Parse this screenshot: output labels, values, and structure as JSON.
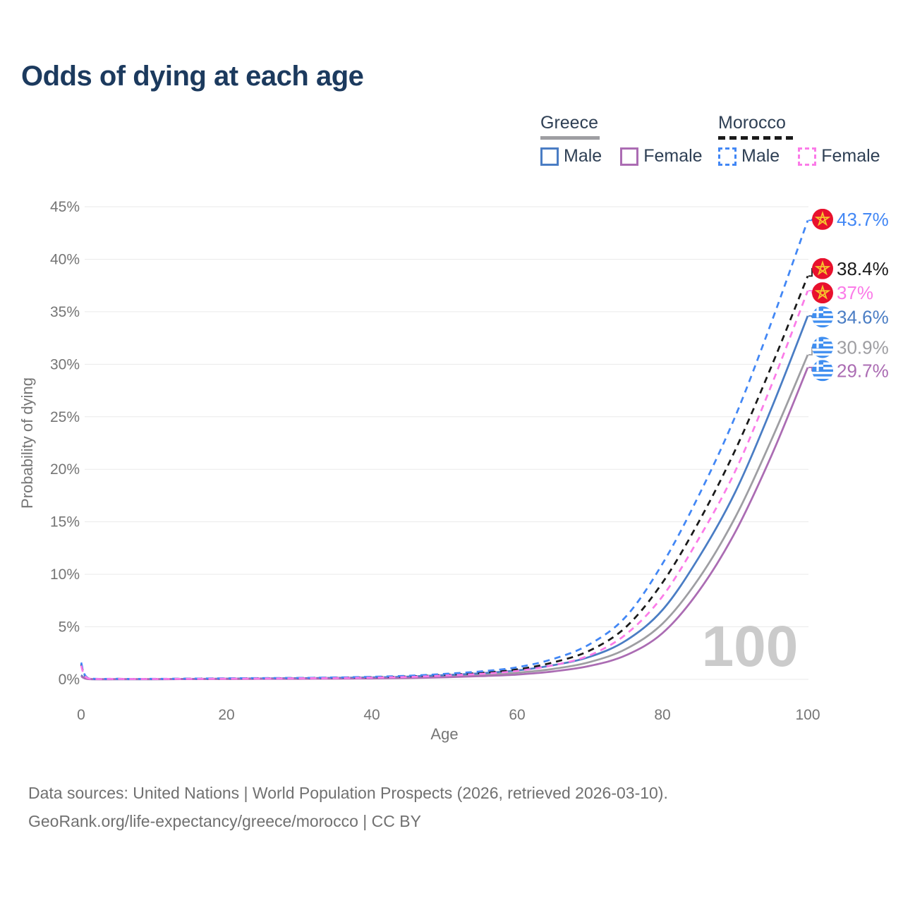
{
  "title": "Odds of dying at each age",
  "legend": {
    "groups": [
      {
        "country": "Greece",
        "line_style": "solid",
        "underline_color": "#9e9ea2",
        "items": [
          {
            "label": "Male",
            "color": "#4a7dc4",
            "dashed": false
          },
          {
            "label": "Female",
            "color": "#ab6cb3",
            "dashed": false
          }
        ]
      },
      {
        "country": "Morocco",
        "line_style": "dashed",
        "underline_color": "#1a1a1a",
        "items": [
          {
            "label": "Male",
            "color": "#4287f5",
            "dashed": true
          },
          {
            "label": "Female",
            "color": "#fb7be8",
            "dashed": true
          }
        ]
      }
    ]
  },
  "watermark": "100",
  "footer": {
    "line1": "Data sources: United Nations | World Population Prospects (2026, retrieved 2026-03-10).",
    "line2": "GeoRank.org/life-expectancy/greece/morocco | CC BY"
  },
  "chart_data": {
    "type": "line",
    "title": "Odds of dying at each age",
    "xlabel": "Age",
    "ylabel": "Probability of dying",
    "xlim": [
      0,
      100
    ],
    "ylim": [
      0,
      45
    ],
    "x_ticks": [
      0,
      20,
      40,
      60,
      80,
      100
    ],
    "y_ticks": [
      0,
      5,
      10,
      15,
      20,
      25,
      30,
      35,
      40,
      45
    ],
    "y_tick_suffix": "%",
    "grid": "horizontal",
    "legend_position": "top-right",
    "ages": [
      0,
      1,
      5,
      10,
      15,
      20,
      25,
      30,
      35,
      40,
      45,
      50,
      55,
      60,
      65,
      70,
      75,
      80,
      85,
      90,
      95,
      100
    ],
    "series": [
      {
        "id": "greece-total",
        "name": "Greece (both sexes)",
        "country": "Greece",
        "sex": "Total",
        "color": "#9e9ea2",
        "dashed": false,
        "flag": "greece",
        "end_label": "30.9%",
        "end_value": 30.9,
        "label_pos": 31.6,
        "values": [
          0.35,
          0.03,
          0.02,
          0.02,
          0.03,
          0.05,
          0.06,
          0.08,
          0.1,
          0.13,
          0.19,
          0.29,
          0.43,
          0.63,
          1.0,
          1.65,
          2.9,
          5.3,
          9.6,
          15.4,
          22.8,
          30.9
        ]
      },
      {
        "id": "greece-male",
        "name": "Greece Male",
        "country": "Greece",
        "sex": "Male",
        "color": "#4a7dc4",
        "dashed": false,
        "flag": "greece",
        "end_label": "34.6%",
        "end_value": 34.6,
        "label_pos": 34.5,
        "values": [
          0.4,
          0.035,
          0.02,
          0.02,
          0.04,
          0.07,
          0.09,
          0.11,
          0.14,
          0.18,
          0.26,
          0.4,
          0.58,
          0.85,
          1.35,
          2.15,
          3.7,
          6.6,
          11.6,
          17.8,
          25.8,
          34.6
        ]
      },
      {
        "id": "greece-female",
        "name": "Greece Female",
        "country": "Greece",
        "sex": "Female",
        "color": "#ab6cb3",
        "dashed": false,
        "flag": "greece",
        "end_label": "29.7%",
        "end_value": 29.7,
        "label_pos": 29.4,
        "values": [
          0.3,
          0.025,
          0.015,
          0.015,
          0.025,
          0.035,
          0.045,
          0.055,
          0.07,
          0.09,
          0.13,
          0.2,
          0.31,
          0.46,
          0.76,
          1.28,
          2.3,
          4.4,
          8.4,
          14.0,
          21.3,
          29.7
        ]
      },
      {
        "id": "morocco-total",
        "name": "Morocco (both sexes)",
        "country": "Morocco",
        "sex": "Total",
        "color": "#1a1a1a",
        "dashed": true,
        "flag": "morocco",
        "end_label": "38.4%",
        "end_value": 38.4,
        "label_pos": 39.1,
        "values": [
          1.45,
          0.09,
          0.045,
          0.04,
          0.06,
          0.08,
          0.1,
          0.12,
          0.15,
          0.2,
          0.28,
          0.43,
          0.62,
          0.95,
          1.62,
          2.75,
          5.0,
          9.2,
          15.0,
          21.8,
          29.8,
          38.4
        ]
      },
      {
        "id": "morocco-male",
        "name": "Morocco Male",
        "country": "Morocco",
        "sex": "Male",
        "color": "#4287f5",
        "dashed": true,
        "flag": "morocco",
        "end_label": "43.7%",
        "end_value": 43.7,
        "label_pos": 43.8,
        "values": [
          1.6,
          0.11,
          0.05,
          0.05,
          0.07,
          0.1,
          0.12,
          0.14,
          0.18,
          0.24,
          0.34,
          0.52,
          0.76,
          1.15,
          1.95,
          3.35,
          6.0,
          11.0,
          17.5,
          25.0,
          34.0,
          43.7
        ]
      },
      {
        "id": "morocco-female",
        "name": "Morocco Female",
        "country": "Morocco",
        "sex": "Female",
        "color": "#fb7be8",
        "dashed": true,
        "flag": "morocco",
        "end_label": "37%",
        "end_value": 37.0,
        "label_pos": 36.8,
        "values": [
          1.3,
          0.08,
          0.04,
          0.035,
          0.05,
          0.06,
          0.08,
          0.1,
          0.12,
          0.16,
          0.23,
          0.36,
          0.52,
          0.8,
          1.35,
          2.3,
          4.3,
          7.9,
          13.4,
          19.8,
          28.0,
          37.0
        ]
      }
    ]
  }
}
